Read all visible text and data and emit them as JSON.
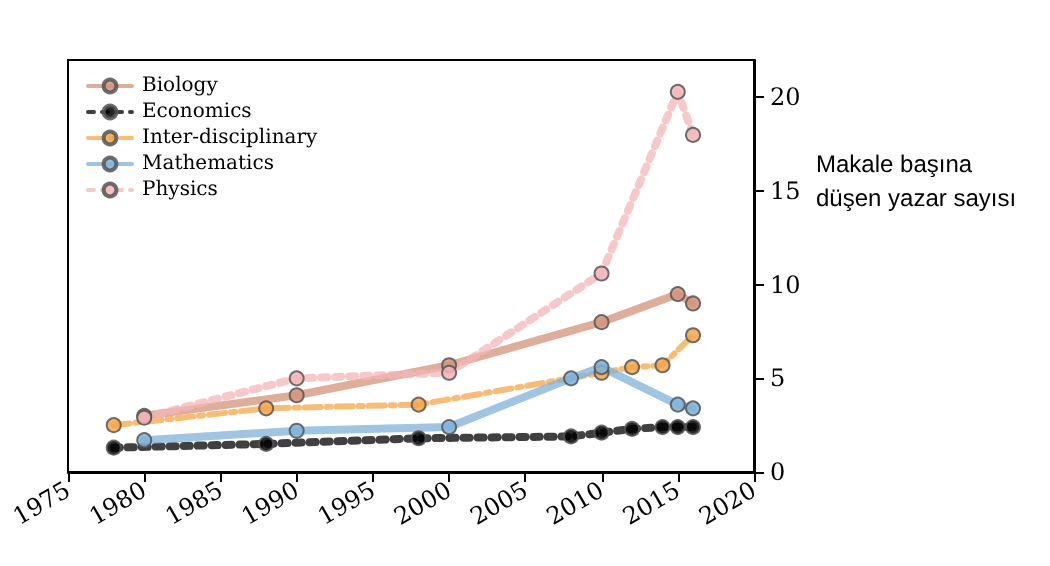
{
  "chart_data": {
    "type": "line",
    "ylabel": "Makale başına düşen yazar sayısı",
    "xlim": [
      1975,
      2020
    ],
    "xticks": [
      1975,
      1980,
      1985,
      1990,
      1995,
      2000,
      2005,
      2010,
      2015,
      2020
    ],
    "ylim": [
      0,
      22
    ],
    "yticks": [
      0,
      5,
      10,
      15,
      20
    ],
    "grid": false,
    "legend": "top left",
    "marker": "circle",
    "series": [
      {
        "name": "Biology",
        "color": "#d4937a",
        "line_style": "solid",
        "x": [
          1980,
          1990,
          2000,
          2010,
          2015,
          2016
        ],
        "values": [
          3.0,
          4.1,
          5.7,
          8.0,
          9.5,
          9.0
        ]
      },
      {
        "name": "Economics",
        "color": "#000000",
        "line_style": "dotted",
        "x": [
          1978,
          1988,
          1998,
          2008,
          2010,
          2012,
          2014,
          2015,
          2016
        ],
        "values": [
          1.3,
          1.5,
          1.8,
          1.9,
          2.1,
          2.3,
          2.4,
          2.4,
          2.4
        ]
      },
      {
        "name": "Inter-disciplinary",
        "color": "#f5a54a",
        "line_style": "dashed",
        "x": [
          1978,
          1988,
          1998,
          2010,
          2012,
          2014,
          2016
        ],
        "values": [
          2.5,
          3.4,
          3.6,
          5.3,
          5.6,
          5.7,
          7.3
        ]
      },
      {
        "name": "Mathematics",
        "color": "#7fb2d9",
        "line_style": "solid",
        "x": [
          1980,
          1990,
          2000,
          2008,
          2010,
          2015,
          2016
        ],
        "values": [
          1.7,
          2.2,
          2.4,
          5.0,
          5.6,
          3.6,
          3.4
        ]
      },
      {
        "name": "Physics",
        "color": "#f4b6b8",
        "line_style": "dotted",
        "x": [
          1980,
          1990,
          2000,
          2010,
          2015,
          2016
        ],
        "values": [
          2.9,
          5.0,
          5.3,
          10.6,
          20.3,
          18.0
        ]
      }
    ]
  }
}
